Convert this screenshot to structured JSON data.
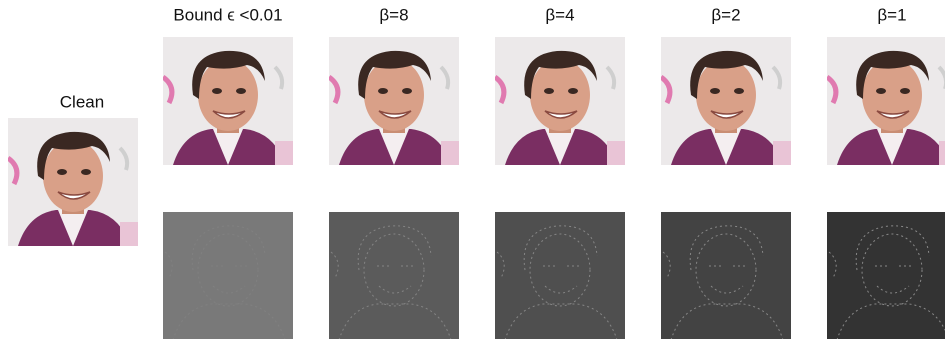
{
  "clean": {
    "label": "Clean"
  },
  "columns": [
    {
      "label": "Bound ϵ <0.01"
    },
    {
      "label": "β=8"
    },
    {
      "label": "β=4"
    },
    {
      "label": "β=2"
    },
    {
      "label": "β=1"
    }
  ]
}
